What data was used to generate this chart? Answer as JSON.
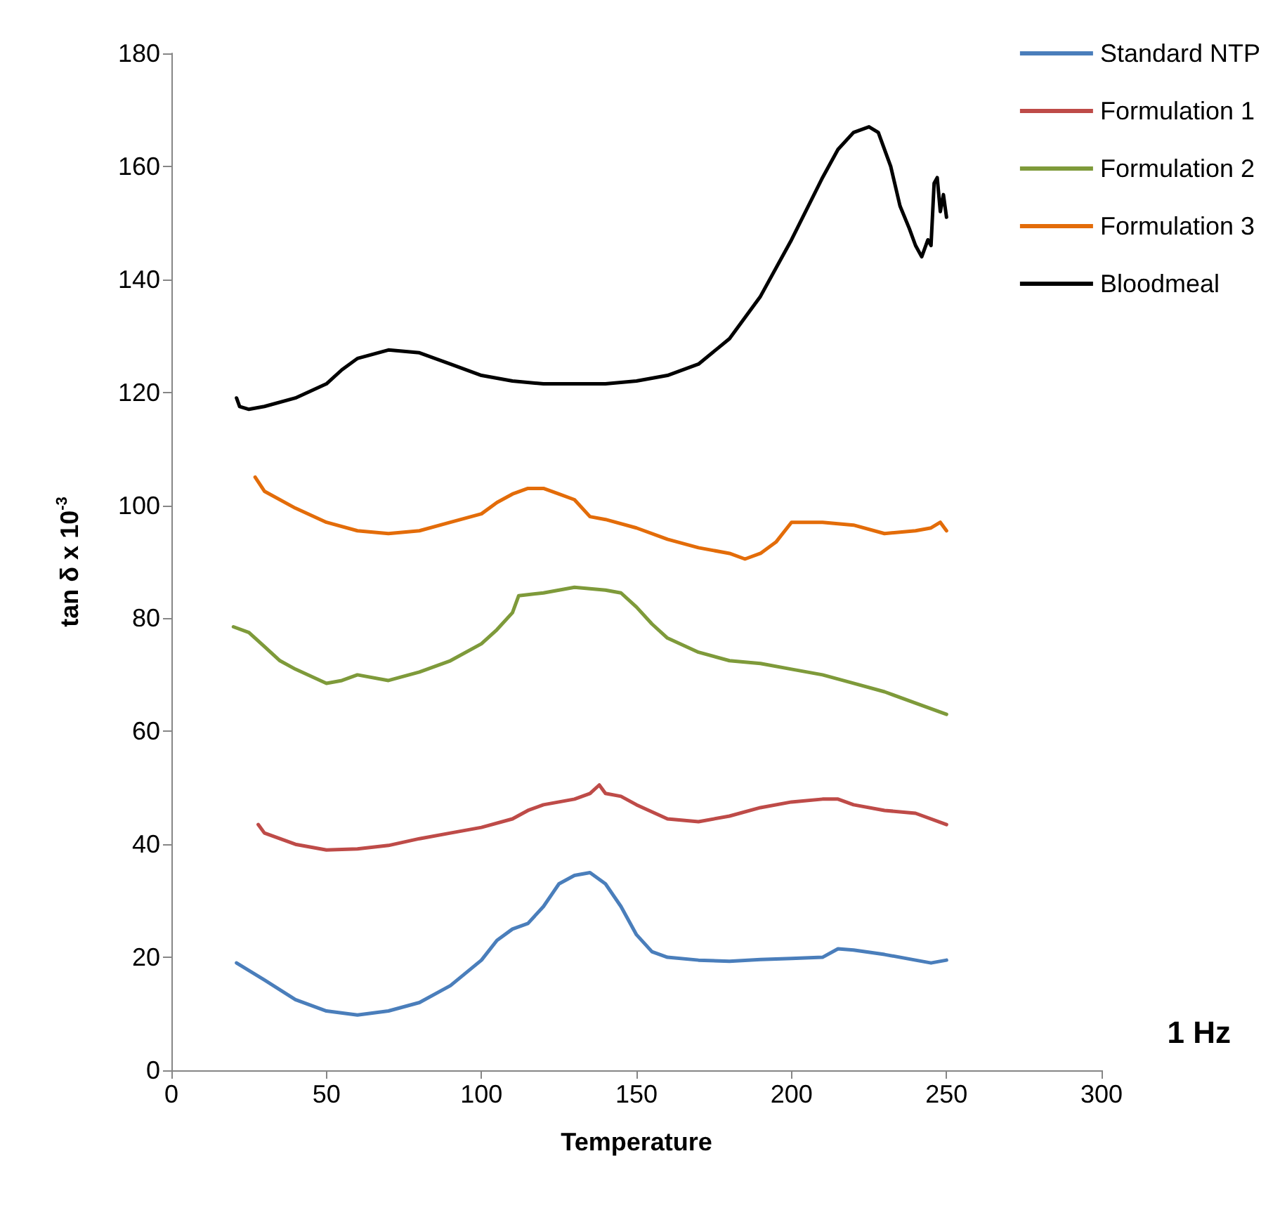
{
  "chart_data": {
    "type": "line",
    "xlabel": "Temperature",
    "ylabel": "tan δ x 10$^{-3}$",
    "annotations": [
      "1 Hz"
    ],
    "xlim": [
      0,
      300
    ],
    "xticks": [
      0,
      50,
      100,
      150,
      200,
      250,
      300
    ],
    "ylim": [
      0,
      180
    ],
    "yticks": [
      0,
      20,
      40,
      60,
      80,
      100,
      120,
      140,
      160,
      180
    ],
    "grid": false,
    "legend": "top right",
    "marker": "none",
    "line_style": "solid",
    "series": [
      {
        "name": "Standard NTP",
        "color": "#4a7ebb",
        "x": [
          21,
          30,
          40,
          50,
          60,
          70,
          80,
          90,
          100,
          105,
          110,
          115,
          120,
          125,
          130,
          135,
          140,
          145,
          150,
          155,
          160,
          170,
          180,
          190,
          200,
          210,
          215,
          220,
          230,
          240,
          245,
          250
        ],
        "values": [
          19,
          16,
          12.5,
          10.5,
          9.8,
          10.5,
          12,
          15,
          19.5,
          23,
          25,
          26,
          29,
          33,
          34.5,
          35,
          33,
          29,
          24,
          21,
          20,
          19.5,
          19.3,
          19.6,
          19.8,
          20,
          21.5,
          21.3,
          20.5,
          19.5,
          19,
          19.5
        ]
      },
      {
        "name": "Formulation 1",
        "color": "#be4b48",
        "x": [
          28,
          30,
          40,
          50,
          60,
          70,
          80,
          90,
          100,
          110,
          115,
          120,
          130,
          135,
          138,
          140,
          145,
          150,
          160,
          170,
          180,
          190,
          200,
          210,
          215,
          220,
          230,
          240,
          250
        ],
        "values": [
          43.5,
          42,
          40,
          39,
          39.2,
          39.8,
          41,
          42,
          43,
          44.5,
          46,
          47,
          48,
          49,
          50.5,
          49,
          48.5,
          47,
          44.5,
          44,
          45,
          46.5,
          47.5,
          48,
          48,
          47,
          46,
          45.5,
          43.5
        ]
      },
      {
        "name": "Formulation 2",
        "color": "#7e9a3a",
        "x": [
          20,
          25,
          30,
          35,
          40,
          50,
          55,
          60,
          70,
          80,
          90,
          100,
          105,
          110,
          112,
          120,
          130,
          140,
          145,
          150,
          155,
          160,
          170,
          180,
          190,
          200,
          210,
          220,
          230,
          240,
          250
        ],
        "values": [
          78.5,
          77.5,
          75,
          72.5,
          71,
          68.5,
          69,
          70,
          69,
          70.5,
          72.5,
          75.5,
          78,
          81,
          84,
          84.5,
          85.5,
          85,
          84.5,
          82,
          79,
          76.5,
          74,
          72.5,
          72,
          71,
          70,
          68.5,
          67,
          65,
          63
        ]
      },
      {
        "name": "Formulation 3",
        "color": "#e36c09",
        "x": [
          27,
          30,
          40,
          50,
          60,
          70,
          80,
          90,
          100,
          105,
          110,
          115,
          120,
          125,
          130,
          135,
          140,
          150,
          160,
          170,
          180,
          185,
          190,
          195,
          200,
          210,
          220,
          230,
          240,
          245,
          248,
          250
        ],
        "values": [
          105,
          102.5,
          99.5,
          97,
          95.5,
          95,
          95.5,
          97,
          98.5,
          100.5,
          102,
          103,
          103,
          102,
          101,
          98,
          97.5,
          96,
          94,
          92.5,
          91.5,
          90.5,
          91.5,
          93.5,
          97,
          97,
          96.5,
          95,
          95.5,
          96,
          97,
          95.5
        ]
      },
      {
        "name": "Bloodmeal",
        "color": "#000000",
        "x": [
          21,
          22,
          25,
          30,
          40,
          50,
          55,
          60,
          70,
          80,
          90,
          100,
          110,
          120,
          140,
          150,
          160,
          170,
          180,
          190,
          200,
          210,
          215,
          220,
          225,
          228,
          232,
          235,
          238,
          240,
          242,
          244,
          245,
          246,
          247,
          248,
          249,
          250
        ],
        "values": [
          119,
          117.5,
          117,
          117.5,
          119,
          121.5,
          124,
          126,
          127.5,
          127,
          125,
          123,
          122,
          121.5,
          121.5,
          122,
          123,
          125,
          129.5,
          137,
          147,
          158,
          163,
          166,
          167,
          166,
          160,
          153,
          149,
          146,
          144,
          147,
          146,
          157,
          158,
          152,
          155,
          151
        ]
      }
    ]
  }
}
